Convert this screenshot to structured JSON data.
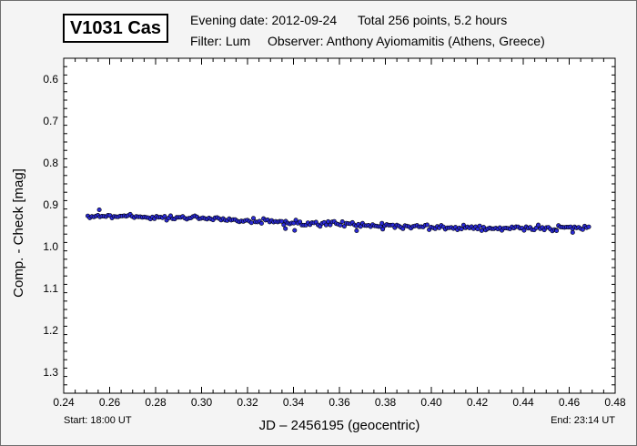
{
  "header": {
    "star_name": "V1031 Cas",
    "evening_date": "Evening date: 2012-09-24",
    "total_points": "Total 256 points, 5.2 hours",
    "filter": "Filter: Lum",
    "observer": "Observer: Anthony Ayiomamitis (Athens, Greece)"
  },
  "footer": {
    "start": "Start: 18:00 UT",
    "end": "End: 23:14 UT"
  },
  "chart_data": {
    "type": "scatter",
    "xlabel": "JD – 2456195  (geocentric)",
    "ylabel": "Comp. - Check [mag]",
    "xlim": [
      0.24,
      0.48
    ],
    "ylim": [
      1.35,
      0.55
    ],
    "y_inverted": true,
    "x_ticks": [
      "0.24",
      "0.26",
      "0.28",
      "0.30",
      "0.32",
      "0.34",
      "0.36",
      "0.38",
      "0.40",
      "0.42",
      "0.44",
      "0.46",
      "0.48"
    ],
    "y_ticks": [
      "0.6",
      "0.7",
      "0.8",
      "0.9",
      "1.0",
      "1.1",
      "1.2",
      "1.3"
    ],
    "grid": false,
    "marker_color": "#2b2bd6",
    "marker_edge": "#000000",
    "n_points": 256,
    "x_start": 0.2505,
    "x_end": 0.4685,
    "trend": [
      [
        0.25,
        0.926
      ],
      [
        0.3,
        0.932
      ],
      [
        0.35,
        0.945
      ],
      [
        0.4,
        0.954
      ],
      [
        0.47,
        0.956
      ]
    ],
    "outliers": [
      [
        0.2555,
        0.912
      ],
      [
        0.3365,
        0.957
      ],
      [
        0.3405,
        0.961
      ],
      [
        0.3675,
        0.962
      ],
      [
        0.3785,
        0.944
      ],
      [
        0.4545,
        0.962
      ],
      [
        0.4615,
        0.966
      ]
    ]
  }
}
